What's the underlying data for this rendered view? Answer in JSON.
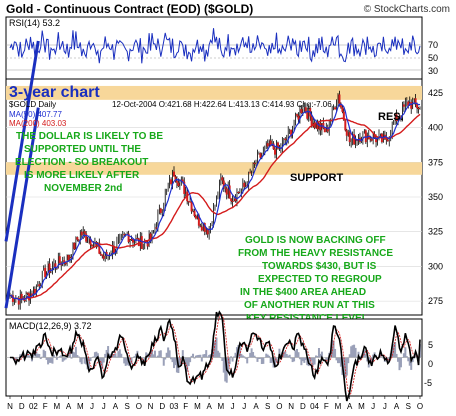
{
  "header": {
    "title": "Gold - Continuous Contract (EOD) ($GOLD)",
    "copyright": "© StockCharts.com"
  },
  "rsi_panel": {
    "label": "RSI(14) 53.2",
    "ticks": [
      "70",
      "50",
      "30"
    ]
  },
  "price_panel": {
    "chart_note": "3-year chart",
    "symbol_line": "$GOLD Daily",
    "quote_line": "12-Oct-2004 O:421.68 H:422.64 L:413.13 C:414.93 Chg:-7.06",
    "ma50_label": "MA(50) 407.77",
    "ma200_label": "MA(200) 403.03",
    "y_ticks": [
      "425",
      "400",
      "375",
      "350",
      "325",
      "300",
      "275"
    ],
    "res_label": "RES.",
    "support_label": "SUPPORT",
    "annotation_dollar": [
      "THE DOLLAR IS LIKELY TO BE",
      "SUPPORTED UNTIL THE",
      "ELECTION - SO BREAKOUT",
      "IS MORE LIKELY AFTER",
      "NOVEMBER 2nd"
    ],
    "annotation_gold": [
      "GOLD IS NOW BACKING OFF",
      "FROM THE HEAVY RESISTANCE",
      "TOWARDS $430, BUT IS",
      "EXPECTED TO REGROUP",
      "IN THE $400 AREA AHEAD",
      "OF ANOTHER RUN AT THIS",
      "KEY RESISTANCE LEVEL"
    ]
  },
  "macd_panel": {
    "label": "MACD(12,26,9) 3.72",
    "ticks": [
      "5",
      "0",
      "-5"
    ]
  },
  "x_axis": {
    "labels": [
      "N",
      "D",
      "02",
      "F",
      "M",
      "A",
      "M",
      "J",
      "J",
      "A",
      "S",
      "O",
      "N",
      "D",
      "03",
      "F",
      "M",
      "A",
      "M",
      "J",
      "J",
      "A",
      "S",
      "O",
      "N",
      "D",
      "04",
      "F",
      "M",
      "A",
      "M",
      "J",
      "J",
      "A",
      "S",
      "O"
    ]
  },
  "colors": {
    "title": "#000000",
    "accent_blue": "#1a2fbf",
    "annotation_green": "#17a81a",
    "ma50": "#1f2fd1",
    "ma200": "#d41c1c",
    "band": "#f7d79a",
    "panel_bg": "#ffffff",
    "frame": "#000000"
  },
  "chart_data": [
    {
      "type": "line",
      "name": "RSI(14)",
      "ylim": [
        0,
        100
      ],
      "reference_lines": [
        70,
        50,
        30
      ],
      "last": 53.2
    },
    {
      "type": "candlestick",
      "title": "Gold - Continuous Contract (EOD) ($GOLD)",
      "ylim": [
        265,
        435
      ],
      "series": [
        {
          "name": "MA(50)",
          "last": 407.77
        },
        {
          "name": "MA(200)",
          "last": 403.03
        }
      ],
      "last_bar": {
        "date": "12-Oct-2004",
        "open": 421.68,
        "high": 422.64,
        "low": 413.13,
        "close": 414.93,
        "change": -7.06
      },
      "x_months": [
        "Nov 2001",
        "Dec",
        "Jan 2002",
        "Feb",
        "Mar",
        "Apr",
        "May",
        "Jun",
        "Jul",
        "Aug",
        "Sep",
        "Oct",
        "Nov",
        "Dec",
        "Jan 2003",
        "Feb",
        "Mar",
        "Apr",
        "May",
        "Jun",
        "Jul",
        "Aug",
        "Sep",
        "Oct",
        "Nov",
        "Dec",
        "Jan 2004",
        "Feb",
        "Mar",
        "Apr",
        "May",
        "Jun",
        "Jul",
        "Aug",
        "Sep",
        "Oct"
      ],
      "monthly_close": [
        279,
        276,
        282,
        296,
        302,
        306,
        324,
        319,
        306,
        314,
        323,
        317,
        319,
        344,
        368,
        354,
        334,
        326,
        362,
        350,
        357,
        375,
        386,
        384,
        398,
        416,
        403,
        397,
        424,
        390,
        395,
        393,
        390,
        407,
        418,
        415
      ],
      "resistance_zone": [
        420,
        430
      ],
      "support_zone": [
        366,
        375
      ],
      "channel_upper": [
        {
          "x": "Nov 2001",
          "y": 318
        },
        {
          "x": "Oct 2004",
          "y": 448
        }
      ],
      "channel_lower": [
        {
          "x": "Nov 2001",
          "y": 270
        },
        {
          "x": "Oct 2004",
          "y": 400
        }
      ]
    },
    {
      "type": "line",
      "name": "MACD(12,26,9)",
      "ylim": [
        -8,
        8
      ],
      "reference_lines": [
        5,
        0,
        -5
      ],
      "last": 3.72
    }
  ]
}
